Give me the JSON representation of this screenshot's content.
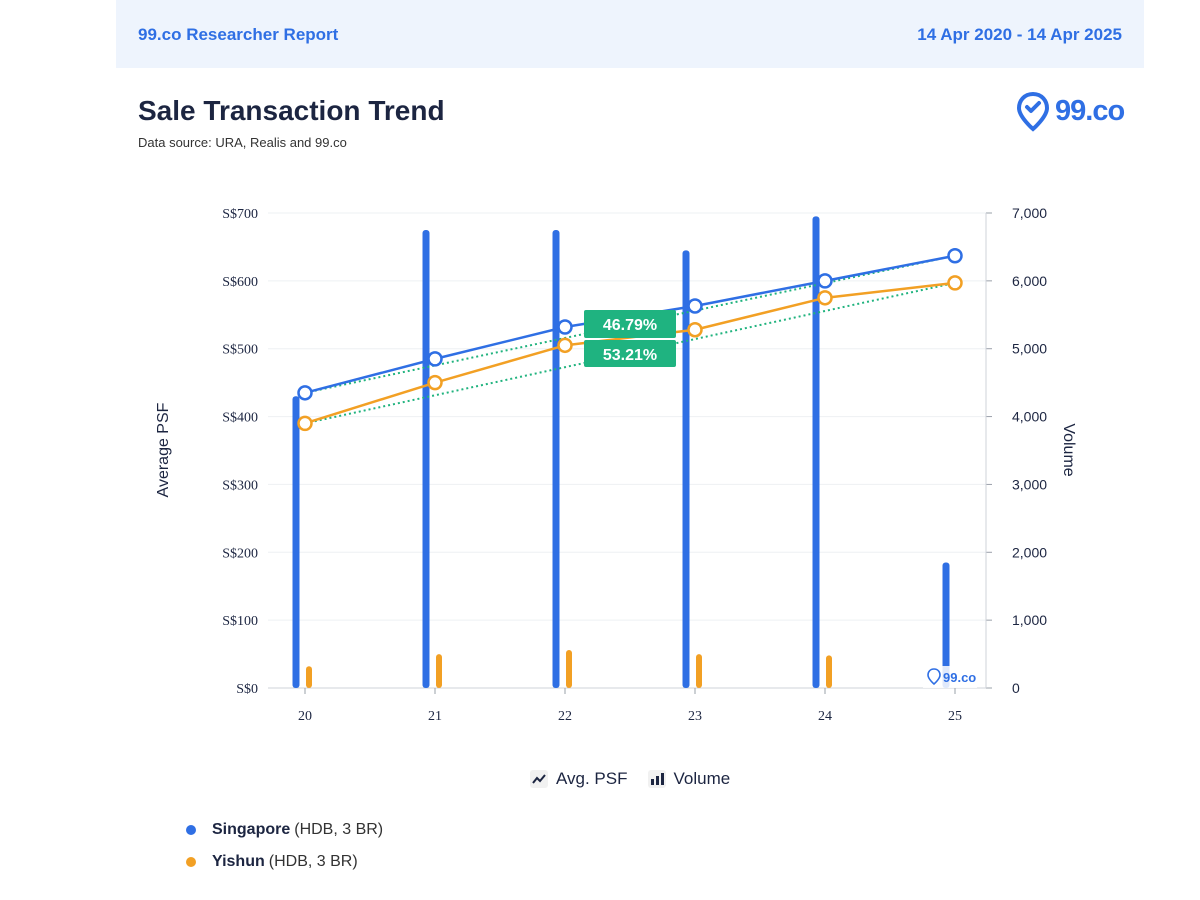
{
  "header": {
    "report_title": "99.co Researcher Report",
    "date_range": "14 Apr 2020 - 14 Apr 2025"
  },
  "title": "Sale Transaction Trend",
  "subtitle": "Data source: URA, Realis and 99.co",
  "logo": {
    "text": "99.co",
    "watermark_text": "99.co",
    "icon": "location-pin-icon"
  },
  "legend_types": [
    {
      "label": "Avg. PSF",
      "icon": "line-chart-icon"
    },
    {
      "label": "Volume",
      "icon": "bar-chart-icon"
    }
  ],
  "series_legend": [
    {
      "name": "Singapore",
      "detail": "(HDB, 3 BR)",
      "color": "#2f6fe4"
    },
    {
      "name": "Yishun",
      "detail": "(HDB, 3 BR)",
      "color": "#f2a024"
    }
  ],
  "colors": {
    "singapore": "#2f6fe4",
    "yishun": "#f2a024",
    "trend": "#20b37e",
    "badge": "#1fb380"
  },
  "chart_data": {
    "type": "bar",
    "categories": [
      "20",
      "21",
      "22",
      "23",
      "24",
      "25"
    ],
    "xlabel": "",
    "ylabel": "Average PSF",
    "y2label": "Volume",
    "ylim": [
      0,
      700
    ],
    "y2lim": [
      0,
      7000
    ],
    "y_ticks": [
      "S$0",
      "S$100",
      "S$200",
      "S$300",
      "S$400",
      "S$500",
      "S$600",
      "S$700"
    ],
    "y2_ticks": [
      "0",
      "1,000",
      "2,000",
      "3,000",
      "4,000",
      "5,000",
      "6,000",
      "7,000"
    ],
    "grid": true,
    "bars": [
      {
        "name": "Singapore",
        "axis": "y2",
        "color": "#2f6fe4",
        "values": [
          4300,
          6750,
          6750,
          6450,
          6950,
          1850
        ]
      },
      {
        "name": "Yishun",
        "axis": "y2",
        "color": "#f2a024",
        "values": [
          320,
          500,
          560,
          500,
          480,
          0
        ]
      }
    ],
    "lines": [
      {
        "name": "Singapore",
        "axis": "y",
        "color": "#2f6fe4",
        "values": [
          435,
          485,
          532,
          563,
          600,
          637
        ]
      },
      {
        "name": "Yishun",
        "axis": "y",
        "color": "#f2a024",
        "values": [
          390,
          450,
          505,
          528,
          575,
          597
        ]
      }
    ],
    "trend_lines": [
      {
        "name": "Singapore",
        "from": 435,
        "to": 637
      },
      {
        "name": "Yishun",
        "from": 390,
        "to": 597
      }
    ],
    "annotations": [
      {
        "text": "46.79%",
        "x": "22",
        "y": 532
      },
      {
        "text": "53.21%",
        "x": "22",
        "y": 490
      }
    ]
  }
}
